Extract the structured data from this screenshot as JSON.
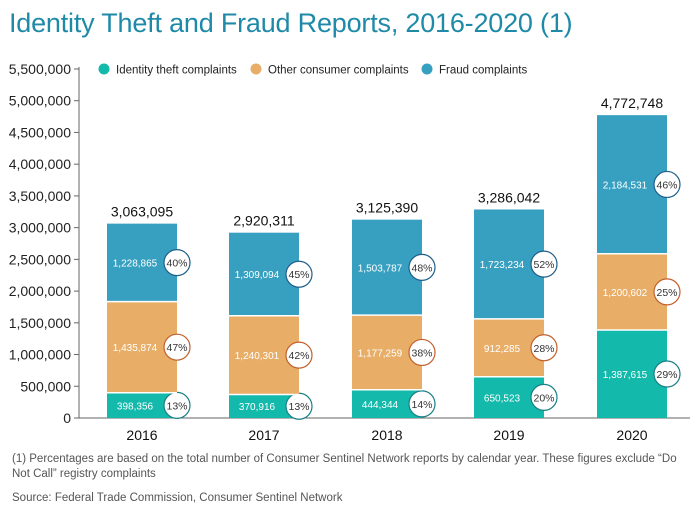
{
  "title": "Identity Theft and Fraud Reports, 2016-2020 (1)",
  "footnote": "(1) Percentages are based on the total number of Consumer Sentinel Network reports by calendar year. These figures exclude “Do Not Call” registry complaints",
  "source": "Source: Federal Trade Commission, Consumer Sentinel Network",
  "chart_data": {
    "type": "bar",
    "stacked": true,
    "title": "Identity Theft and Fraud Reports, 2016-2020 (1)",
    "xlabel": "",
    "ylabel": "",
    "ylim": [
      0,
      5500000
    ],
    "yticks": [
      0,
      500000,
      1000000,
      1500000,
      2000000,
      2500000,
      3000000,
      3500000,
      4000000,
      4500000,
      5000000,
      5500000
    ],
    "ytick_labels": [
      "0",
      "500,000",
      "1,000,000",
      "1,500,000",
      "2,000,000",
      "2,500,000",
      "3,000,000",
      "3,500,000",
      "4,000,000",
      "4,500,000",
      "5,000,000",
      "5,500,000"
    ],
    "categories": [
      "2016",
      "2017",
      "2018",
      "2019",
      "2020"
    ],
    "series": [
      {
        "name": "Identity theft complaints",
        "color": "#13b9aa",
        "values": [
          398356,
          370916,
          444344,
          650523,
          1387615
        ],
        "labels": [
          "398,356",
          "370,916",
          "444,344",
          "650,523",
          "1,387,615"
        ],
        "percents": [
          "13%",
          "13%",
          "14%",
          "20%",
          "29%"
        ]
      },
      {
        "name": "Other consumer complaints",
        "color": "#e8ae68",
        "values": [
          1435874,
          1240301,
          1177259,
          912285,
          1200602
        ],
        "labels": [
          "1,435,874",
          "1,240,301",
          "1,177,259",
          "912,285",
          "1,200,602"
        ],
        "percents": [
          "47%",
          "42%",
          "38%",
          "28%",
          "25%"
        ]
      },
      {
        "name": "Fraud complaints",
        "color": "#37a0c0",
        "values": [
          1228865,
          1309094,
          1503787,
          1723234,
          2184531
        ],
        "labels": [
          "1,228,865",
          "1,309,094",
          "1,503,787",
          "1,723,234",
          "2,184,531"
        ],
        "percents": [
          "40%",
          "45%",
          "48%",
          "52%",
          "46%"
        ]
      }
    ],
    "totals": [
      "3,063,095",
      "2,920,311",
      "3,125,390",
      "3,286,042",
      "4,772,748"
    ],
    "legend_position": "top-left",
    "grid": false,
    "badge_colors": {
      "Identity theft complaints": "#1a7f86",
      "Other consumer complaints": "#c1602c",
      "Fraud complaints": "#1f5f8a"
    }
  }
}
